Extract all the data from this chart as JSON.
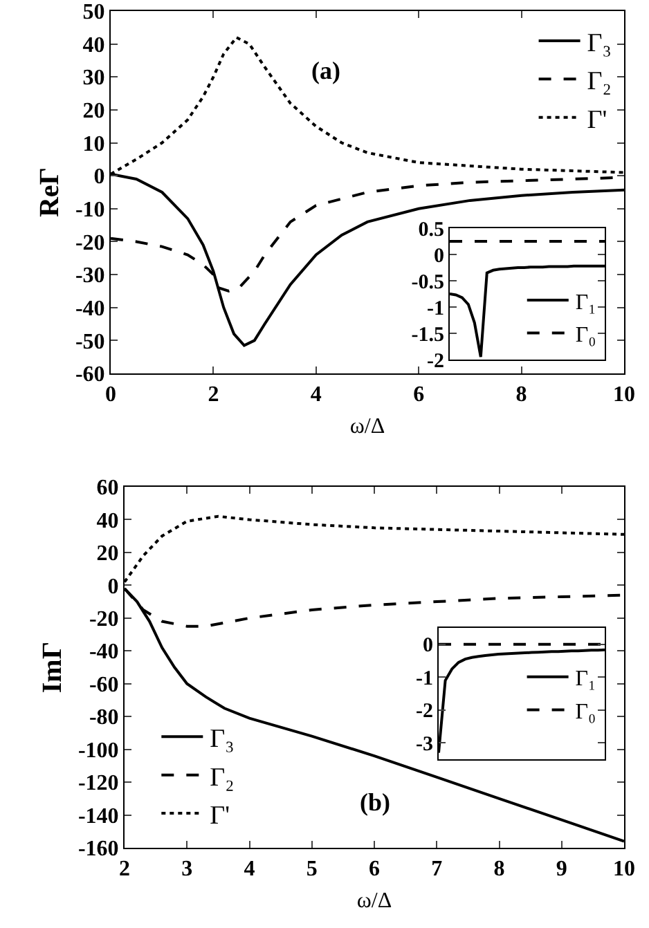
{
  "chart_data": [
    {
      "type": "line",
      "xlabel": "ω/Δ",
      "ylabel": "ReΓ",
      "annotations": [
        "(a)"
      ],
      "xlim": [
        0,
        10
      ],
      "xticks": [
        0,
        2,
        4,
        6,
        8,
        10
      ],
      "ylim": [
        -60,
        50
      ],
      "yticks": [
        -60,
        -50,
        -40,
        -30,
        -20,
        -10,
        0,
        10,
        20,
        30,
        40,
        50
      ],
      "grid": false,
      "legend": "top right",
      "marker": "none",
      "series": [
        {
          "name": "Γ₃",
          "color": "#000000",
          "line_style": "solid",
          "x": [
            0,
            0.5,
            1,
            1.5,
            1.8,
            2,
            2.2,
            2.4,
            2.6,
            2.8,
            3,
            3.5,
            4,
            4.5,
            5,
            6,
            7,
            8,
            9,
            10
          ],
          "values": [
            0.5,
            -1,
            -5,
            -13,
            -21,
            -29,
            -40,
            -48,
            -51.5,
            -50,
            -45,
            -33,
            -24,
            -18,
            -14,
            -10,
            -7.5,
            -6,
            -5,
            -4.3
          ]
        },
        {
          "name": "Γ₂",
          "color": "#000000",
          "line_style": "dashed",
          "x": [
            0,
            0.5,
            1,
            1.5,
            1.8,
            2,
            2.1,
            2.3,
            2.5,
            2.8,
            3,
            3.5,
            4,
            5,
            6,
            7,
            8,
            10
          ],
          "values": [
            -19,
            -20,
            -21.5,
            -24,
            -27,
            -30,
            -34,
            -35,
            -34,
            -29,
            -24,
            -14,
            -9,
            -5,
            -3,
            -2,
            -1.5,
            -0.5
          ]
        },
        {
          "name": "Γ'",
          "color": "#000000",
          "line_style": "dotted",
          "x": [
            0,
            0.5,
            1,
            1.5,
            1.8,
            2,
            2.2,
            2.45,
            2.7,
            3,
            3.5,
            4,
            4.5,
            5,
            6,
            7,
            8,
            9,
            10
          ],
          "values": [
            0.5,
            5,
            10,
            17,
            24,
            30,
            37,
            42,
            40,
            33,
            22,
            15,
            10,
            7,
            4,
            3,
            2,
            1.5,
            1
          ]
        }
      ]
    },
    {
      "type": "line",
      "tick_labels": "y",
      "ylim": [
        -2,
        0.5
      ],
      "yticks": [
        -2,
        -1.5,
        -1,
        -0.5,
        0,
        0.5
      ],
      "grid": false,
      "legend": "bottom right",
      "marker": "none",
      "categories": [
        null,
        null,
        null,
        null,
        null,
        null,
        null,
        null,
        null,
        null,
        null,
        null,
        null,
        null,
        null,
        null,
        null,
        null,
        null,
        null,
        null,
        null,
        null,
        null,
        null,
        null
      ],
      "series": [
        {
          "name": "Γ₁",
          "color": "#000000",
          "line_style": "solid",
          "values": [
            -0.75,
            -0.77,
            -0.82,
            -0.95,
            -1.3,
            -1.95,
            -0.35,
            -0.3,
            -0.28,
            -0.27,
            -0.26,
            -0.25,
            -0.25,
            -0.24,
            -0.24,
            -0.24,
            -0.23,
            -0.23,
            -0.23,
            -0.23,
            -0.22,
            -0.22,
            -0.22,
            -0.22,
            -0.22,
            -0.22
          ]
        },
        {
          "name": "Γ₀",
          "color": "#000000",
          "line_style": "dashed",
          "values": [
            0.25,
            0.25,
            0.25,
            0.25,
            0.25,
            0.25,
            0.25,
            0.25,
            0.25,
            0.25,
            0.25,
            0.25,
            0.25,
            0.25,
            0.25,
            0.25,
            0.25,
            0.25,
            0.25,
            0.25,
            0.25,
            0.25,
            0.25,
            0.25,
            0.25,
            0.25
          ]
        }
      ]
    },
    {
      "type": "line",
      "xlabel": "ω/Δ",
      "ylabel": "ImΓ",
      "annotations": [
        "(b)"
      ],
      "xlim": [
        2,
        10
      ],
      "xticks": [
        2,
        3,
        4,
        5,
        6,
        7,
        8,
        9,
        10
      ],
      "ylim": [
        -160,
        60
      ],
      "yticks": [
        -160,
        -140,
        -120,
        -100,
        -80,
        -60,
        -40,
        -20,
        0,
        20,
        40,
        60
      ],
      "grid": false,
      "legend": "bottom left",
      "marker": "none",
      "series": [
        {
          "name": "Γ₃",
          "color": "#000000",
          "line_style": "solid",
          "x": [
            2,
            2.2,
            2.4,
            2.6,
            2.8,
            3,
            3.3,
            3.6,
            4,
            5,
            6,
            7,
            8,
            9,
            10
          ],
          "values": [
            -2,
            -10,
            -22,
            -38,
            -50,
            -60,
            -68,
            -75,
            -81,
            -92,
            -104,
            -117,
            -130,
            -143,
            -156
          ]
        },
        {
          "name": "Γ₂",
          "color": "#000000",
          "line_style": "dashed",
          "x": [
            2,
            2.3,
            2.6,
            3,
            3.3,
            4,
            5,
            6,
            7,
            8,
            9,
            10
          ],
          "values": [
            -2,
            -15,
            -22,
            -25,
            -25,
            -20,
            -15,
            -12,
            -10,
            -8,
            -7,
            -6
          ]
        },
        {
          "name": "Γ'",
          "color": "#000000",
          "line_style": "dotted",
          "x": [
            2,
            2.3,
            2.6,
            3,
            3.5,
            4,
            5,
            6,
            7,
            8,
            9,
            10
          ],
          "values": [
            2,
            18,
            30,
            39,
            42,
            40,
            37,
            35,
            34,
            33,
            32,
            31
          ]
        }
      ]
    },
    {
      "type": "line",
      "tick_labels": "y",
      "ylim": [
        -3.5,
        0.5
      ],
      "yticks": [
        -3,
        -2,
        -1,
        0
      ],
      "grid": false,
      "legend": "right",
      "marker": "none",
      "categories": [
        null,
        null,
        null,
        null,
        null,
        null,
        null,
        null,
        null,
        null,
        null,
        null,
        null,
        null,
        null,
        null,
        null,
        null,
        null,
        null,
        null,
        null,
        null,
        null,
        null,
        null
      ],
      "series": [
        {
          "name": "Γ₁",
          "color": "#000000",
          "line_style": "solid",
          "values": [
            -3.3,
            -1.1,
            -0.75,
            -0.55,
            -0.45,
            -0.4,
            -0.37,
            -0.34,
            -0.32,
            -0.3,
            -0.29,
            -0.28,
            -0.27,
            -0.26,
            -0.25,
            -0.24,
            -0.23,
            -0.22,
            -0.22,
            -0.21,
            -0.2,
            -0.2,
            -0.19,
            -0.18,
            -0.18,
            -0.17
          ]
        },
        {
          "name": "Γ₀",
          "color": "#000000",
          "line_style": "dashed",
          "values": [
            0,
            0,
            0,
            0,
            0,
            0,
            0,
            0,
            0,
            0,
            0,
            0,
            0,
            0,
            0,
            0,
            0,
            0,
            0,
            0,
            0,
            0,
            0,
            0,
            0,
            0
          ]
        }
      ]
    }
  ]
}
